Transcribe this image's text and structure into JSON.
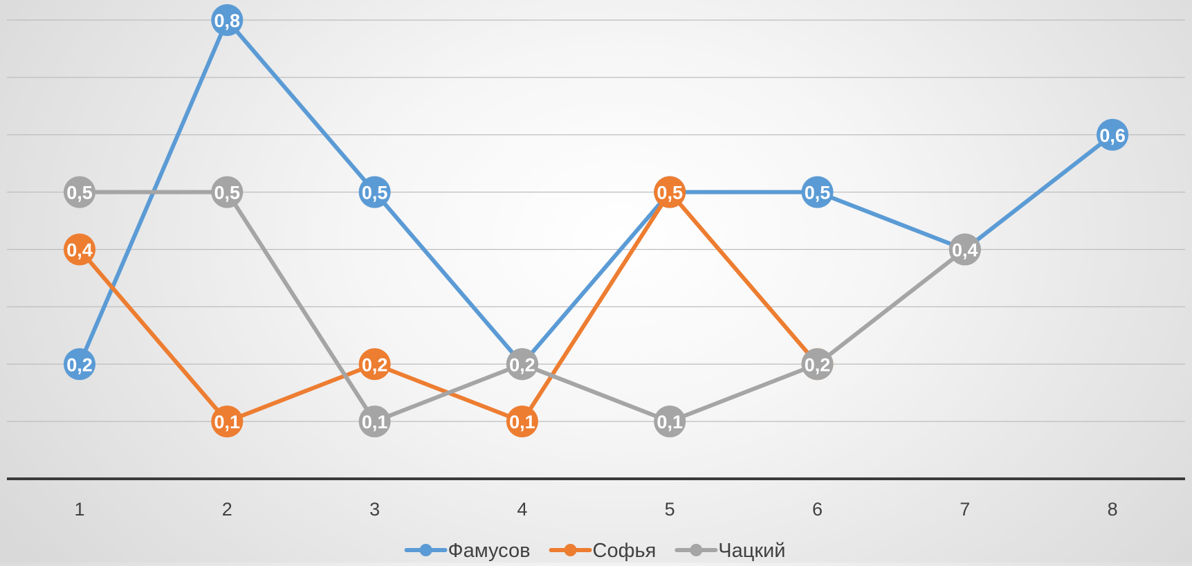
{
  "chart_data": {
    "type": "line",
    "title": "",
    "xlabel": "",
    "ylabel": "",
    "x": [
      "1",
      "2",
      "3",
      "4",
      "5",
      "6",
      "7",
      "8"
    ],
    "ylim": [
      0,
      0.8
    ],
    "grid": true,
    "legend_position": "bottom",
    "series": [
      {
        "name": "Фамусов",
        "color": "#5b9bd5",
        "values": [
          0.2,
          0.8,
          0.5,
          0.2,
          0.5,
          0.5,
          0.4,
          0.6
        ],
        "labels": [
          "0,2",
          "0,8",
          "0,5",
          "0,2",
          "0,5",
          "0,5",
          "0,4",
          "0,6"
        ]
      },
      {
        "name": "Софья",
        "color": "#ed7d31",
        "values": [
          0.4,
          0.1,
          0.2,
          0.1,
          0.5,
          0.2,
          null,
          null
        ],
        "labels": [
          "0,4",
          "0,1",
          "0,2",
          "0,1",
          "0,5",
          "0,2",
          null,
          null
        ]
      },
      {
        "name": "Чацкий",
        "color": "#a5a5a5",
        "values": [
          0.5,
          0.5,
          0.1,
          0.2,
          0.1,
          0.2,
          0.4,
          null
        ],
        "labels": [
          "0,5",
          "0,5",
          "0,1",
          "0,2",
          "0,1",
          "0,2",
          "0,4",
          null
        ]
      }
    ]
  }
}
